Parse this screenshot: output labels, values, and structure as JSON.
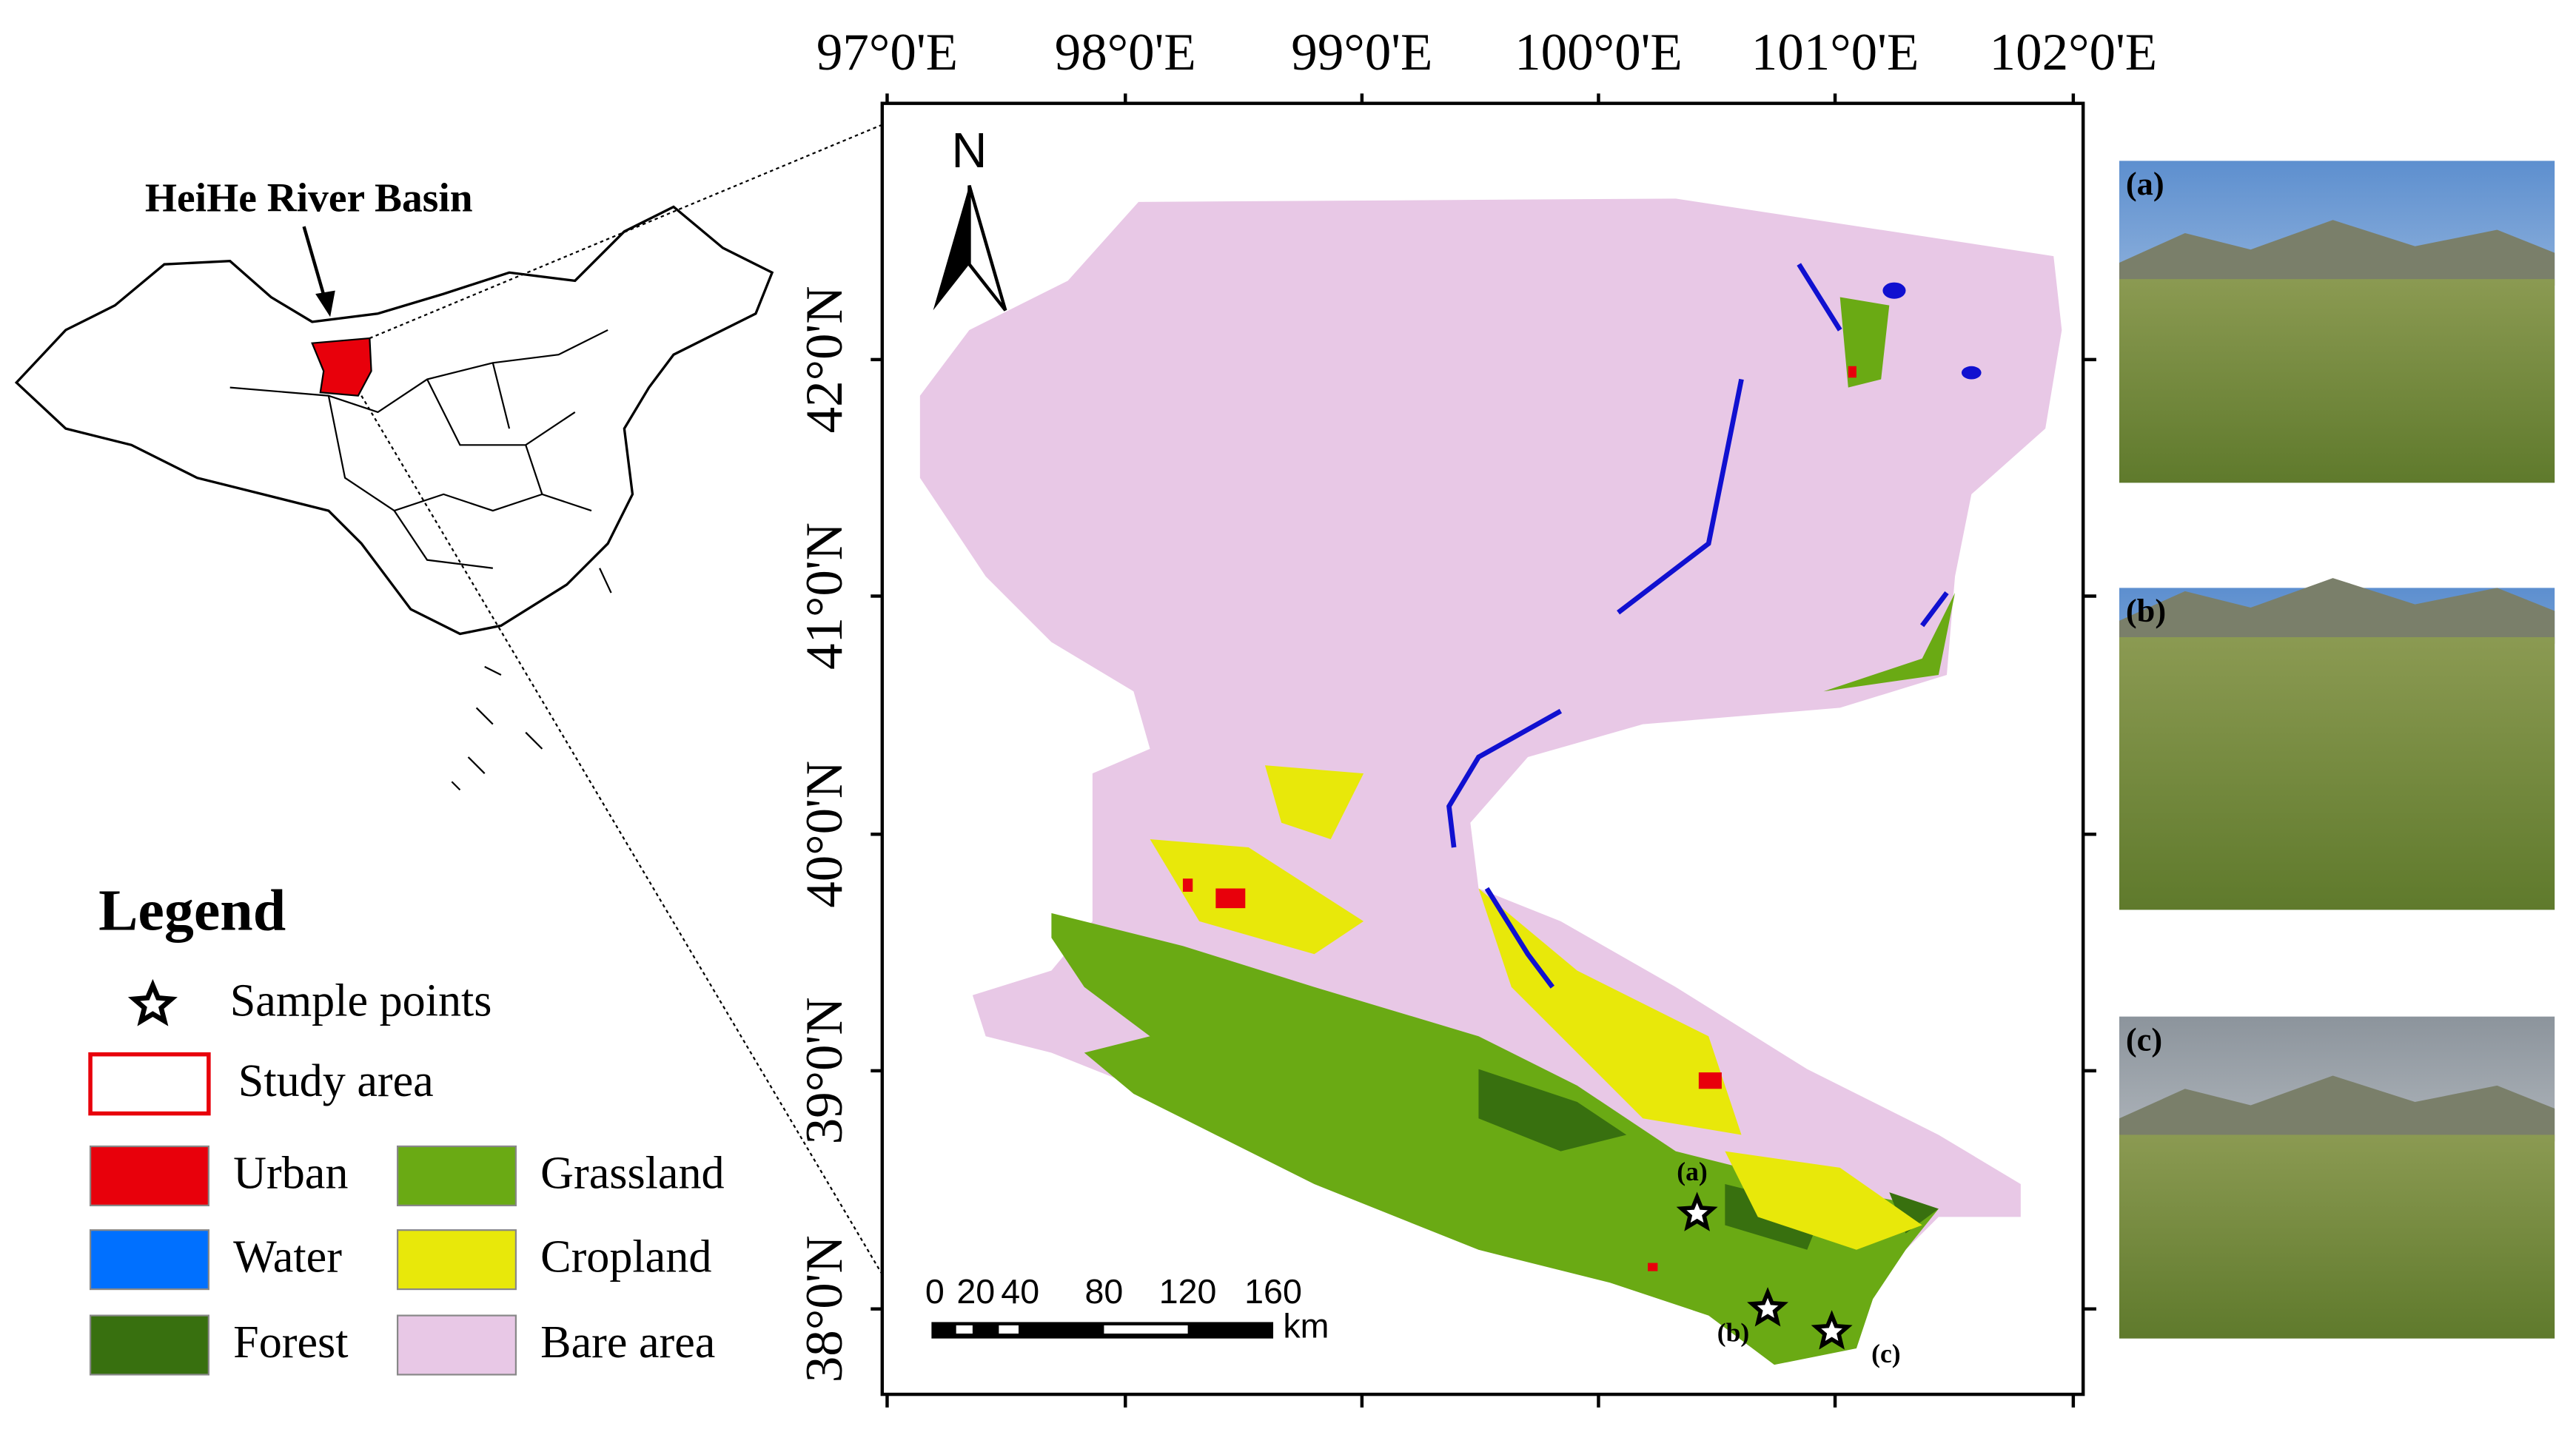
{
  "inset": {
    "label": "HeiHe River Basin"
  },
  "map": {
    "north": "N",
    "lon_labels": [
      "97°0'E",
      "98°0'E",
      "99°0'E",
      "100°0'E",
      "101°0'E",
      "102°0'E"
    ],
    "lat_labels": [
      "42°0'N",
      "41°0'N",
      "40°0'N",
      "39°0'N",
      "38°0'N"
    ],
    "scale_bar": {
      "labels": [
        "0",
        "20",
        "40",
        "80",
        "120",
        "160"
      ],
      "unit": "km"
    },
    "sample_labels": [
      "(a)",
      "(b)",
      "(c)"
    ]
  },
  "legend": {
    "title": "Legend",
    "items": [
      {
        "label": "Sample points"
      },
      {
        "label": "Study area",
        "color": "#e8000b"
      },
      {
        "label": "Urban",
        "color": "#e8000b"
      },
      {
        "label": "Water",
        "color": "#0070ff"
      },
      {
        "label": "Forest",
        "color": "#38700f"
      },
      {
        "label": "Grassland",
        "color": "#6aaa14"
      },
      {
        "label": "Cropland",
        "color": "#e8e80a"
      },
      {
        "label": "Bare area",
        "color": "#e8c8e6"
      }
    ]
  },
  "photos": [
    {
      "label": "(a)"
    },
    {
      "label": "(b)"
    },
    {
      "label": "(c)"
    }
  ]
}
